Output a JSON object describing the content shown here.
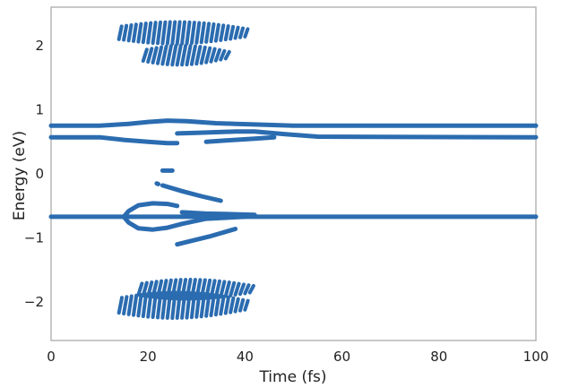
{
  "chart_data": {
    "type": "line",
    "title": "",
    "xlabel": "Time (fs)",
    "ylabel": "Energy (eV)",
    "xlim": [
      0,
      100
    ],
    "ylim": [
      -2.6,
      2.6
    ],
    "xticks": [
      0,
      20,
      40,
      60,
      80,
      100
    ],
    "yticks": [
      -2,
      -1,
      0,
      1,
      2
    ],
    "xtick_labels": [
      "0",
      "20",
      "40",
      "60",
      "80",
      "100"
    ],
    "ytick_labels": [
      "−2",
      "−1",
      "0",
      "1",
      "2"
    ],
    "grid": false,
    "legend": "none",
    "color": "#2b6cb0",
    "series": [
      {
        "x": [
          0,
          10,
          16,
          20,
          24,
          28,
          34,
          38,
          42,
          50,
          100
        ],
        "y": [
          0.75,
          0.75,
          0.78,
          0.81,
          0.83,
          0.82,
          0.79,
          0.78,
          0.77,
          0.75,
          0.75
        ]
      },
      {
        "x": [
          0,
          10,
          15,
          20,
          24,
          26
        ],
        "y": [
          0.57,
          0.57,
          0.53,
          0.5,
          0.48,
          0.48
        ]
      },
      {
        "x": [
          26,
          30,
          34,
          38,
          42,
          48,
          55,
          100
        ],
        "y": [
          0.63,
          0.64,
          0.65,
          0.66,
          0.66,
          0.62,
          0.58,
          0.57
        ]
      },
      {
        "x": [
          32,
          36,
          42,
          46
        ],
        "y": [
          0.5,
          0.52,
          0.55,
          0.57
        ]
      },
      {
        "x": [
          0,
          100
        ],
        "y": [
          -0.67,
          -0.67
        ]
      },
      {
        "x": [
          15,
          16,
          18,
          21,
          24,
          26
        ],
        "y": [
          -0.67,
          -0.58,
          -0.49,
          -0.46,
          -0.47,
          -0.5
        ]
      },
      {
        "x": [
          15,
          16,
          18,
          21,
          24,
          27,
          32,
          40
        ],
        "y": [
          -0.67,
          -0.76,
          -0.85,
          -0.87,
          -0.84,
          -0.78,
          -0.7,
          -0.67
        ]
      },
      {
        "x": [
          27,
          32,
          38,
          42
        ],
        "y": [
          -0.6,
          -0.62,
          -0.63,
          -0.64
        ]
      },
      {
        "x": [
          26,
          33,
          38
        ],
        "y": [
          -1.1,
          -0.97,
          -0.86
        ]
      },
      {
        "x": [
          23,
          27,
          31,
          35
        ],
        "y": [
          -0.18,
          -0.27,
          -0.35,
          -0.42
        ]
      },
      {
        "x": [
          23,
          23.6,
          24.4,
          25
        ],
        "y": [
          0.05,
          0.05,
          0.05,
          0.05
        ]
      },
      {
        "x": [
          21.8,
          22.1
        ],
        "y": [
          -0.15,
          -0.16
        ]
      }
    ],
    "bands": [
      {
        "x_start": 14,
        "x_end": 40,
        "y_center": 2.2,
        "amplitude": 0.17,
        "gap": 0.55
      },
      {
        "x_start": 19,
        "x_end": 36,
        "y_center": 1.85,
        "amplitude": 0.15,
        "gap": 0.75
      },
      {
        "x_start": 18,
        "x_end": 41,
        "y_center": -1.8,
        "amplitude": 0.15,
        "gap": 0.75
      },
      {
        "x_start": 14,
        "x_end": 40,
        "y_center": -2.05,
        "amplitude": 0.2,
        "gap": 0.6
      }
    ]
  }
}
